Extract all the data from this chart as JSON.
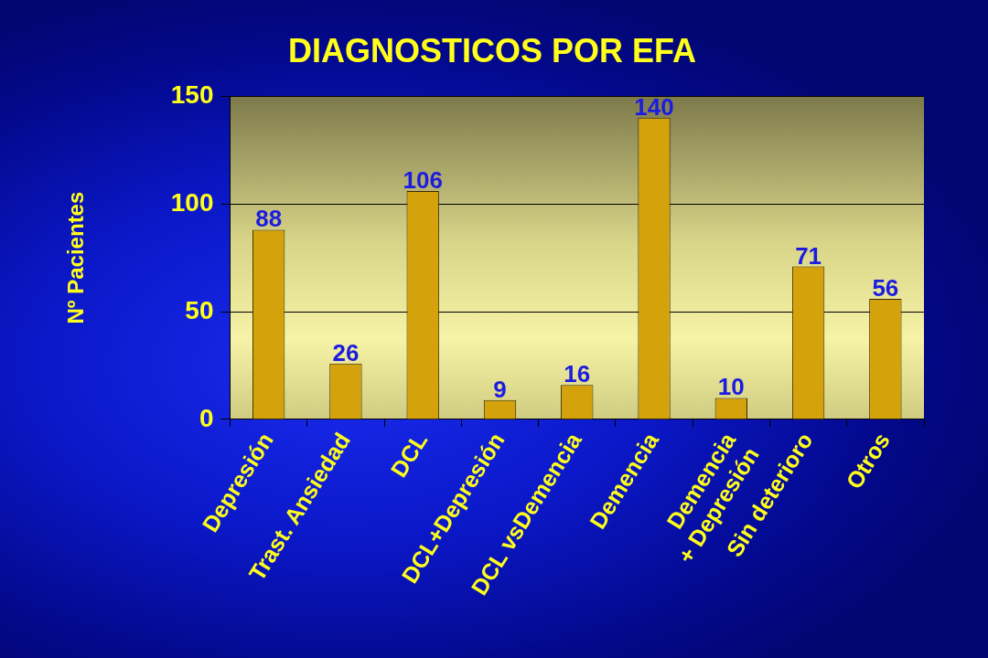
{
  "chart_data": {
    "type": "bar",
    "title": "DIAGNOSTICOS POR EFA",
    "ylabel": "Nº Pacientes",
    "categories": [
      "Depresión",
      "Trast. Ansiedad",
      "DCL",
      "DCL+Depresión",
      "DCL vsDemencia",
      "Demencia",
      "Demencia\n+ Depresión",
      "Sin deterioro",
      "Otros"
    ],
    "values": [
      88,
      26,
      106,
      9,
      16,
      140,
      10,
      71,
      56
    ],
    "color": "#d4a20a",
    "ylim": [
      0,
      150
    ],
    "yticks": [
      0,
      50,
      100,
      150
    ],
    "grid": "y",
    "data_labels": true
  }
}
